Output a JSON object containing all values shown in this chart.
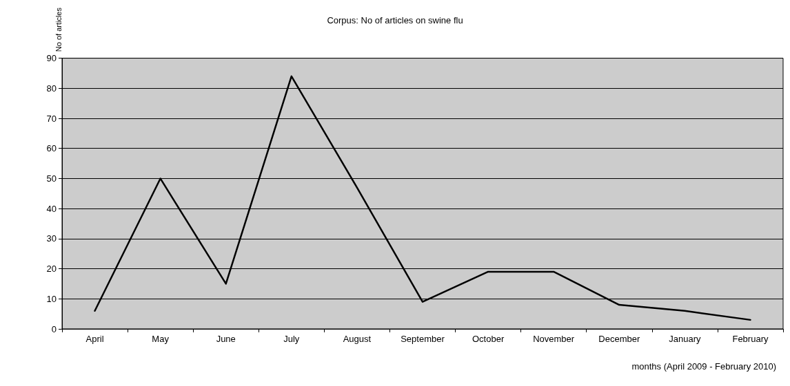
{
  "chart_data": {
    "type": "line",
    "title": "Corpus: No of articles on swine flu",
    "xlabel": "months (April 2009 - February 2010)",
    "ylabel": "No of articles",
    "categories": [
      "April",
      "May",
      "June",
      "July",
      "August",
      "September",
      "October",
      "November",
      "December",
      "January",
      "February"
    ],
    "series": [
      {
        "color": "#000000",
        "values": [
          6,
          50,
          15,
          84,
          47,
          9,
          19,
          19,
          8,
          6,
          3
        ]
      }
    ],
    "ylim": [
      0,
      90
    ],
    "yticks": [
      0,
      10,
      20,
      30,
      40,
      50,
      60,
      70,
      80,
      90
    ],
    "grid": "y",
    "marker": "none",
    "line_style": "solid"
  }
}
